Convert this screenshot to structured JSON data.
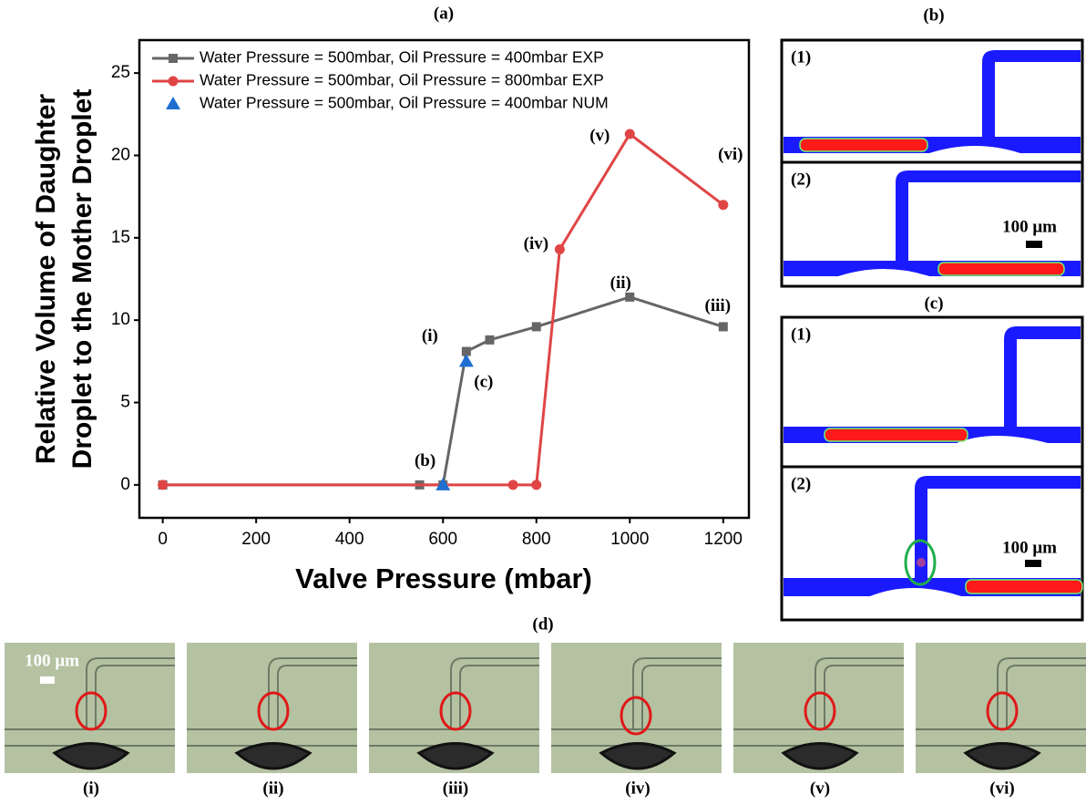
{
  "chart_data": {
    "type": "line",
    "title": "(a)",
    "xlabel": "Valve Pressure (mbar)",
    "ylabel": [
      "Relative Volume of Daughter",
      "Droplet to the Mother Droplet"
    ],
    "xlim": [
      -50,
      1255
    ],
    "ylim": [
      -2,
      27
    ],
    "xticks": [
      0,
      200,
      400,
      600,
      800,
      1000,
      1200
    ],
    "yticks": [
      0,
      5,
      10,
      15,
      20,
      25
    ],
    "legend": "upper left",
    "series": [
      {
        "name": "Water Pressure = 500mbar, Oil Pressure = 400mbar EXP",
        "color": "#666666",
        "marker": "square",
        "line": true,
        "x": [
          0,
          550,
          600,
          650,
          700,
          800,
          1000,
          1200
        ],
        "values": [
          0,
          0,
          0,
          8.1,
          8.8,
          9.6,
          11.4,
          9.6
        ]
      },
      {
        "name": "Water Pressure = 500mbar, Oil Pressure = 800mbar EXP",
        "color": "#e04545",
        "marker": "circle",
        "line": true,
        "x": [
          0,
          750,
          800,
          850,
          1000,
          1200
        ],
        "values": [
          0,
          0,
          0,
          14.3,
          21.3,
          17
        ]
      },
      {
        "name": "Water Pressure = 500mbar, Oil Pressure = 400mbar NUM",
        "color": "#1f6fd1",
        "marker": "triangle",
        "line": false,
        "x": [
          600,
          650
        ],
        "values": [
          0,
          7.5
        ]
      }
    ],
    "annotations": [
      "(i)",
      "(ii)",
      "(iii)",
      "(iv)",
      "(v)",
      "(vi)",
      "(b)",
      "(c)"
    ]
  },
  "panels": {
    "b": {
      "label": "(b)",
      "frames": [
        "(1)",
        "(2)"
      ],
      "scale": "100 μm"
    },
    "c": {
      "label": "(c)",
      "frames": [
        "(1)",
        "(2)"
      ],
      "scale": "100 μm"
    },
    "d": {
      "label": "(d)",
      "scale": "100 μm",
      "images": [
        "(i)",
        "(ii)",
        "(iii)",
        "(iv)",
        "(v)",
        "(vi)"
      ]
    }
  }
}
